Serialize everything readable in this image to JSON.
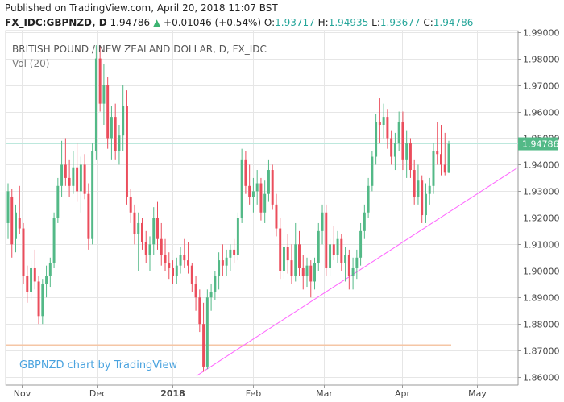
{
  "header": {
    "published": "Published on TradingView.com, April 20, 2018 11:07 BST",
    "symbol": "FX_IDC:GBPNZD, D",
    "last": "1.94786",
    "change": "+0.01046 (+0.54%)",
    "o_label": "O:",
    "o_value": "1.93717",
    "h_label": "H:",
    "h_value": "1.94935",
    "l_label": "L:",
    "l_value": "1.93677",
    "c_label": "C:",
    "c_value": "1.94786"
  },
  "chart_data": {
    "type": "candlestick",
    "title": "BRITISH POUND / NEW ZEALAND DOLLAR, D, FX_IDC",
    "indicator": "Vol (20)",
    "watermark": "GBPNZD chart by TradingView",
    "ylim": [
      1.857,
      1.9905
    ],
    "y_ticks": [
      "1.99000",
      "1.98000",
      "1.97000",
      "1.96000",
      "1.95000",
      "1.94000",
      "1.93000",
      "1.92000",
      "1.91000",
      "1.90000",
      "1.89000",
      "1.88000",
      "1.87000",
      "1.86000"
    ],
    "x_ticks": [
      "Nov",
      "Dec",
      "2018",
      "Feb",
      "Mar",
      "Apr",
      "May"
    ],
    "last_price_label": "1.94786",
    "last_price": 1.94786,
    "support_level": 1.872,
    "trendline": {
      "start": [
        1.8605
      ],
      "end": [
        1.939
      ]
    },
    "colors": {
      "up": "#53b987",
      "down": "#eb4d5c",
      "grid": "#e6e6e6",
      "trendline": "#ff66ff",
      "support": "#f5c6a5",
      "price_line": "#bde8dd"
    },
    "candles": [
      {
        "o": 1.918,
        "h": 1.933,
        "l": 1.912,
        "c": 1.93
      },
      {
        "o": 1.928,
        "h": 1.931,
        "l": 1.905,
        "c": 1.91
      },
      {
        "o": 1.912,
        "h": 1.925,
        "l": 1.907,
        "c": 1.922
      },
      {
        "o": 1.92,
        "h": 1.932,
        "l": 1.914,
        "c": 1.916
      },
      {
        "o": 1.916,
        "h": 1.918,
        "l": 1.895,
        "c": 1.898
      },
      {
        "o": 1.898,
        "h": 1.902,
        "l": 1.888,
        "c": 1.892
      },
      {
        "o": 1.892,
        "h": 1.904,
        "l": 1.889,
        "c": 1.901
      },
      {
        "o": 1.901,
        "h": 1.908,
        "l": 1.893,
        "c": 1.896
      },
      {
        "o": 1.896,
        "h": 1.898,
        "l": 1.88,
        "c": 1.883
      },
      {
        "o": 1.883,
        "h": 1.897,
        "l": 1.88,
        "c": 1.895
      },
      {
        "o": 1.895,
        "h": 1.902,
        "l": 1.89,
        "c": 1.898
      },
      {
        "o": 1.898,
        "h": 1.905,
        "l": 1.894,
        "c": 1.903
      },
      {
        "o": 1.903,
        "h": 1.922,
        "l": 1.901,
        "c": 1.92
      },
      {
        "o": 1.92,
        "h": 1.935,
        "l": 1.918,
        "c": 1.932
      },
      {
        "o": 1.932,
        "h": 1.949,
        "l": 1.928,
        "c": 1.94
      },
      {
        "o": 1.94,
        "h": 1.95,
        "l": 1.932,
        "c": 1.935
      },
      {
        "o": 1.935,
        "h": 1.942,
        "l": 1.928,
        "c": 1.932
      },
      {
        "o": 1.932,
        "h": 1.945,
        "l": 1.929,
        "c": 1.939
      },
      {
        "o": 1.939,
        "h": 1.948,
        "l": 1.926,
        "c": 1.93
      },
      {
        "o": 1.93,
        "h": 1.943,
        "l": 1.922,
        "c": 1.94
      },
      {
        "o": 1.94,
        "h": 1.944,
        "l": 1.927,
        "c": 1.929
      },
      {
        "o": 1.929,
        "h": 1.933,
        "l": 1.908,
        "c": 1.912
      },
      {
        "o": 1.912,
        "h": 1.948,
        "l": 1.91,
        "c": 1.945
      },
      {
        "o": 1.945,
        "h": 1.985,
        "l": 1.942,
        "c": 1.98
      },
      {
        "o": 1.98,
        "h": 1.985,
        "l": 1.96,
        "c": 1.963
      },
      {
        "o": 1.963,
        "h": 1.978,
        "l": 1.955,
        "c": 1.97
      },
      {
        "o": 1.97,
        "h": 1.973,
        "l": 1.946,
        "c": 1.95
      },
      {
        "o": 1.95,
        "h": 1.962,
        "l": 1.942,
        "c": 1.958
      },
      {
        "o": 1.958,
        "h": 1.963,
        "l": 1.942,
        "c": 1.945
      },
      {
        "o": 1.945,
        "h": 1.955,
        "l": 1.94,
        "c": 1.951
      },
      {
        "o": 1.951,
        "h": 1.97,
        "l": 1.945,
        "c": 1.962
      },
      {
        "o": 1.962,
        "h": 1.968,
        "l": 1.925,
        "c": 1.928
      },
      {
        "o": 1.928,
        "h": 1.931,
        "l": 1.918,
        "c": 1.922
      },
      {
        "o": 1.922,
        "h": 1.925,
        "l": 1.91,
        "c": 1.914
      },
      {
        "o": 1.914,
        "h": 1.922,
        "l": 1.9,
        "c": 1.918
      },
      {
        "o": 1.918,
        "h": 1.92,
        "l": 1.908,
        "c": 1.911
      },
      {
        "o": 1.911,
        "h": 1.915,
        "l": 1.903,
        "c": 1.906
      },
      {
        "o": 1.906,
        "h": 1.913,
        "l": 1.9,
        "c": 1.91
      },
      {
        "o": 1.91,
        "h": 1.924,
        "l": 1.906,
        "c": 1.92
      },
      {
        "o": 1.92,
        "h": 1.926,
        "l": 1.908,
        "c": 1.912
      },
      {
        "o": 1.912,
        "h": 1.918,
        "l": 1.902,
        "c": 1.906
      },
      {
        "o": 1.906,
        "h": 1.912,
        "l": 1.9,
        "c": 1.903
      },
      {
        "o": 1.903,
        "h": 1.907,
        "l": 1.897,
        "c": 1.901
      },
      {
        "o": 1.901,
        "h": 1.904,
        "l": 1.895,
        "c": 1.898
      },
      {
        "o": 1.898,
        "h": 1.905,
        "l": 1.895,
        "c": 1.902
      },
      {
        "o": 1.902,
        "h": 1.909,
        "l": 1.899,
        "c": 1.906
      },
      {
        "o": 1.906,
        "h": 1.912,
        "l": 1.901,
        "c": 1.904
      },
      {
        "o": 1.904,
        "h": 1.911,
        "l": 1.899,
        "c": 1.902
      },
      {
        "o": 1.902,
        "h": 1.903,
        "l": 1.892,
        "c": 1.895
      },
      {
        "o": 1.895,
        "h": 1.898,
        "l": 1.885,
        "c": 1.89
      },
      {
        "o": 1.89,
        "h": 1.893,
        "l": 1.877,
        "c": 1.88
      },
      {
        "o": 1.88,
        "h": 1.888,
        "l": 1.862,
        "c": 1.864
      },
      {
        "o": 1.864,
        "h": 1.893,
        "l": 1.863,
        "c": 1.89
      },
      {
        "o": 1.89,
        "h": 1.895,
        "l": 1.885,
        "c": 1.892
      },
      {
        "o": 1.892,
        "h": 1.9,
        "l": 1.889,
        "c": 1.898
      },
      {
        "o": 1.898,
        "h": 1.907,
        "l": 1.893,
        "c": 1.904
      },
      {
        "o": 1.904,
        "h": 1.91,
        "l": 1.898,
        "c": 1.902
      },
      {
        "o": 1.902,
        "h": 1.908,
        "l": 1.898,
        "c": 1.905
      },
      {
        "o": 1.905,
        "h": 1.91,
        "l": 1.9,
        "c": 1.908
      },
      {
        "o": 1.908,
        "h": 1.912,
        "l": 1.903,
        "c": 1.906
      },
      {
        "o": 1.906,
        "h": 1.922,
        "l": 1.904,
        "c": 1.92
      },
      {
        "o": 1.92,
        "h": 1.946,
        "l": 1.918,
        "c": 1.942
      },
      {
        "o": 1.942,
        "h": 1.945,
        "l": 1.929,
        "c": 1.932
      },
      {
        "o": 1.932,
        "h": 1.94,
        "l": 1.925,
        "c": 1.928
      },
      {
        "o": 1.928,
        "h": 1.935,
        "l": 1.922,
        "c": 1.93
      },
      {
        "o": 1.93,
        "h": 1.938,
        "l": 1.925,
        "c": 1.933
      },
      {
        "o": 1.933,
        "h": 1.935,
        "l": 1.919,
        "c": 1.922
      },
      {
        "o": 1.922,
        "h": 1.934,
        "l": 1.918,
        "c": 1.929
      },
      {
        "o": 1.929,
        "h": 1.942,
        "l": 1.926,
        "c": 1.938
      },
      {
        "o": 1.938,
        "h": 1.94,
        "l": 1.923,
        "c": 1.925
      },
      {
        "o": 1.925,
        "h": 1.929,
        "l": 1.913,
        "c": 1.916
      },
      {
        "o": 1.916,
        "h": 1.92,
        "l": 1.897,
        "c": 1.9
      },
      {
        "o": 1.9,
        "h": 1.912,
        "l": 1.897,
        "c": 1.909
      },
      {
        "o": 1.909,
        "h": 1.914,
        "l": 1.899,
        "c": 1.904
      },
      {
        "o": 1.904,
        "h": 1.91,
        "l": 1.895,
        "c": 1.898
      },
      {
        "o": 1.898,
        "h": 1.918,
        "l": 1.896,
        "c": 1.91
      },
      {
        "o": 1.91,
        "h": 1.915,
        "l": 1.898,
        "c": 1.901
      },
      {
        "o": 1.901,
        "h": 1.906,
        "l": 1.893,
        "c": 1.898
      },
      {
        "o": 1.898,
        "h": 1.905,
        "l": 1.894,
        "c": 1.902
      },
      {
        "o": 1.902,
        "h": 1.904,
        "l": 1.89,
        "c": 1.896
      },
      {
        "o": 1.896,
        "h": 1.905,
        "l": 1.893,
        "c": 1.903
      },
      {
        "o": 1.903,
        "h": 1.918,
        "l": 1.9,
        "c": 1.915
      },
      {
        "o": 1.915,
        "h": 1.925,
        "l": 1.91,
        "c": 1.922
      },
      {
        "o": 1.922,
        "h": 1.925,
        "l": 1.898,
        "c": 1.901
      },
      {
        "o": 1.901,
        "h": 1.912,
        "l": 1.898,
        "c": 1.91
      },
      {
        "o": 1.91,
        "h": 1.917,
        "l": 1.904,
        "c": 1.906
      },
      {
        "o": 1.906,
        "h": 1.915,
        "l": 1.903,
        "c": 1.912
      },
      {
        "o": 1.912,
        "h": 1.914,
        "l": 1.9,
        "c": 1.903
      },
      {
        "o": 1.903,
        "h": 1.909,
        "l": 1.896,
        "c": 1.906
      },
      {
        "o": 1.906,
        "h": 1.908,
        "l": 1.893,
        "c": 1.898
      },
      {
        "o": 1.898,
        "h": 1.905,
        "l": 1.893,
        "c": 1.901
      },
      {
        "o": 1.901,
        "h": 1.908,
        "l": 1.897,
        "c": 1.905
      },
      {
        "o": 1.905,
        "h": 1.918,
        "l": 1.902,
        "c": 1.915
      },
      {
        "o": 1.915,
        "h": 1.925,
        "l": 1.912,
        "c": 1.922
      },
      {
        "o": 1.922,
        "h": 1.935,
        "l": 1.92,
        "c": 1.932
      },
      {
        "o": 1.932,
        "h": 1.945,
        "l": 1.93,
        "c": 1.943
      },
      {
        "o": 1.943,
        "h": 1.959,
        "l": 1.94,
        "c": 1.956
      },
      {
        "o": 1.956,
        "h": 1.965,
        "l": 1.948,
        "c": 1.955
      },
      {
        "o": 1.955,
        "h": 1.963,
        "l": 1.95,
        "c": 1.958
      },
      {
        "o": 1.958,
        "h": 1.961,
        "l": 1.946,
        "c": 1.95
      },
      {
        "o": 1.95,
        "h": 1.953,
        "l": 1.94,
        "c": 1.943
      },
      {
        "o": 1.943,
        "h": 1.952,
        "l": 1.938,
        "c": 1.948
      },
      {
        "o": 1.948,
        "h": 1.96,
        "l": 1.945,
        "c": 1.956
      },
      {
        "o": 1.956,
        "h": 1.96,
        "l": 1.938,
        "c": 1.942
      },
      {
        "o": 1.942,
        "h": 1.953,
        "l": 1.935,
        "c": 1.948
      },
      {
        "o": 1.948,
        "h": 1.95,
        "l": 1.935,
        "c": 1.938
      },
      {
        "o": 1.938,
        "h": 1.942,
        "l": 1.925,
        "c": 1.928
      },
      {
        "o": 1.928,
        "h": 1.94,
        "l": 1.925,
        "c": 1.934
      },
      {
        "o": 1.934,
        "h": 1.936,
        "l": 1.918,
        "c": 1.921
      },
      {
        "o": 1.921,
        "h": 1.933,
        "l": 1.918,
        "c": 1.929
      },
      {
        "o": 1.929,
        "h": 1.935,
        "l": 1.925,
        "c": 1.932
      },
      {
        "o": 1.932,
        "h": 1.948,
        "l": 1.929,
        "c": 1.945
      },
      {
        "o": 1.945,
        "h": 1.956,
        "l": 1.94,
        "c": 1.944
      },
      {
        "o": 1.944,
        "h": 1.955,
        "l": 1.936,
        "c": 1.94
      },
      {
        "o": 1.94,
        "h": 1.952,
        "l": 1.936,
        "c": 1.937
      },
      {
        "o": 1.937,
        "h": 1.949,
        "l": 1.9368,
        "c": 1.94786
      }
    ]
  }
}
